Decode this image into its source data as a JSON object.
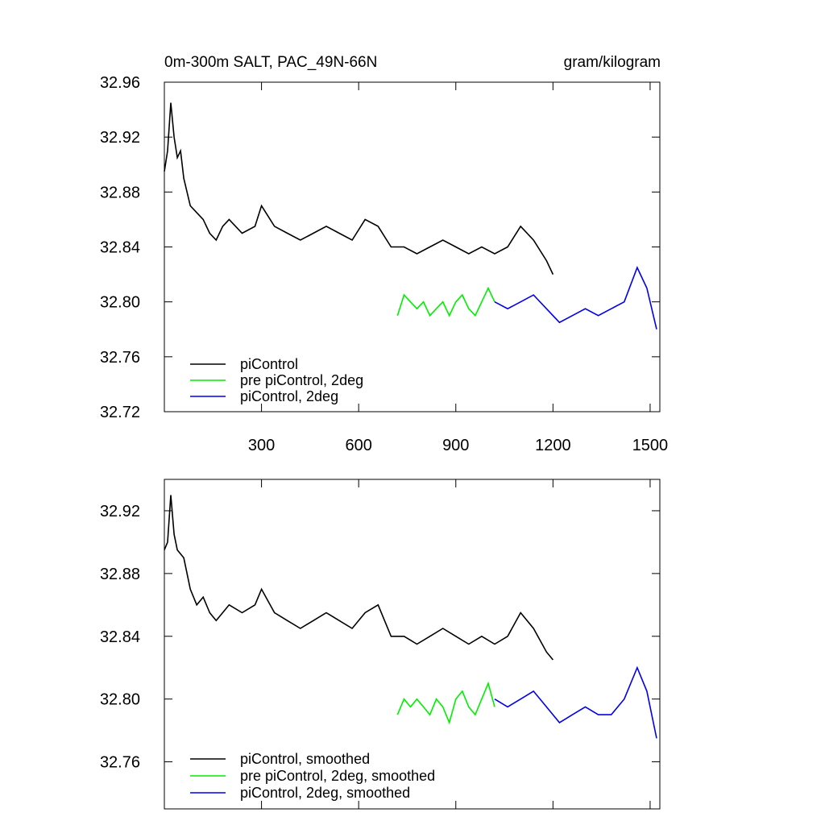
{
  "chart_data": [
    {
      "type": "line",
      "title": "0m-300m SALT, PAC_49N-66N",
      "units": "gram/kilogram",
      "xlim": [
        0,
        1530
      ],
      "ylim": [
        32.72,
        32.96
      ],
      "xticks": [
        300,
        600,
        900,
        1200,
        1500
      ],
      "xtick_labels": [
        "300",
        "600",
        "900",
        "1200",
        "1500"
      ],
      "yticks": [
        32.72,
        32.76,
        32.8,
        32.84,
        32.88,
        32.92,
        32.96
      ],
      "ytick_labels": [
        "32.72",
        "32.76",
        "32.80",
        "32.84",
        "32.88",
        "32.92",
        "32.96"
      ],
      "legend_position": "bottom-left",
      "series": [
        {
          "name": "piControl",
          "color": "#000000",
          "x": [
            0,
            10,
            20,
            30,
            40,
            50,
            60,
            80,
            100,
            120,
            140,
            160,
            180,
            200,
            240,
            280,
            300,
            340,
            380,
            420,
            460,
            500,
            540,
            580,
            620,
            660,
            700,
            740,
            780,
            820,
            860,
            900,
            940,
            980,
            1020,
            1060,
            1100,
            1140,
            1180,
            1200
          ],
          "y": [
            32.895,
            32.91,
            32.945,
            32.92,
            32.905,
            32.91,
            32.89,
            32.87,
            32.865,
            32.86,
            32.85,
            32.845,
            32.855,
            32.86,
            32.85,
            32.855,
            32.87,
            32.855,
            32.85,
            32.845,
            32.85,
            32.855,
            32.85,
            32.845,
            32.86,
            32.855,
            32.84,
            32.84,
            32.835,
            32.84,
            32.845,
            32.84,
            32.835,
            32.84,
            32.835,
            32.84,
            32.855,
            32.845,
            32.83,
            32.82
          ]
        },
        {
          "name": "pre piControl, 2deg",
          "color": "#00ee00",
          "x": [
            720,
            740,
            760,
            780,
            800,
            820,
            840,
            860,
            880,
            900,
            920,
            940,
            960,
            980,
            1000,
            1020
          ],
          "y": [
            32.79,
            32.805,
            32.8,
            32.795,
            32.8,
            32.79,
            32.795,
            32.8,
            32.79,
            32.8,
            32.805,
            32.795,
            32.79,
            32.8,
            32.81,
            32.8
          ]
        },
        {
          "name": "piControl, 2deg",
          "color": "#0000ee",
          "x": [
            1020,
            1060,
            1100,
            1140,
            1180,
            1220,
            1260,
            1300,
            1340,
            1380,
            1420,
            1460,
            1490,
            1520
          ],
          "y": [
            32.8,
            32.795,
            32.8,
            32.805,
            32.795,
            32.785,
            32.79,
            32.795,
            32.79,
            32.795,
            32.8,
            32.825,
            32.81,
            32.78
          ]
        }
      ]
    },
    {
      "type": "line",
      "title": "",
      "xlim": [
        0,
        1530
      ],
      "ylim": [
        32.73,
        32.94
      ],
      "yticks": [
        32.76,
        32.8,
        32.84,
        32.88,
        32.92
      ],
      "ytick_labels": [
        "32.76",
        "32.80",
        "32.84",
        "32.88",
        "32.92"
      ],
      "legend_position": "bottom-left",
      "series": [
        {
          "name": "piControl, smoothed",
          "color": "#000000",
          "x": [
            0,
            10,
            20,
            30,
            40,
            60,
            80,
            100,
            120,
            140,
            160,
            200,
            240,
            280,
            300,
            340,
            380,
            420,
            460,
            500,
            540,
            580,
            620,
            660,
            700,
            740,
            780,
            820,
            860,
            900,
            940,
            980,
            1020,
            1060,
            1100,
            1140,
            1180,
            1200
          ],
          "y": [
            32.895,
            32.9,
            32.93,
            32.905,
            32.895,
            32.89,
            32.87,
            32.86,
            32.865,
            32.855,
            32.85,
            32.86,
            32.855,
            32.86,
            32.87,
            32.855,
            32.85,
            32.845,
            32.85,
            32.855,
            32.85,
            32.845,
            32.855,
            32.86,
            32.84,
            32.84,
            32.835,
            32.84,
            32.845,
            32.84,
            32.835,
            32.84,
            32.835,
            32.84,
            32.855,
            32.845,
            32.83,
            32.825
          ]
        },
        {
          "name": "pre piControl, 2deg, smoothed",
          "color": "#00ee00",
          "x": [
            720,
            740,
            760,
            780,
            800,
            820,
            840,
            860,
            880,
            900,
            920,
            940,
            960,
            980,
            1000,
            1020
          ],
          "y": [
            32.79,
            32.8,
            32.795,
            32.8,
            32.795,
            32.79,
            32.8,
            32.795,
            32.785,
            32.8,
            32.805,
            32.795,
            32.79,
            32.8,
            32.81,
            32.795
          ]
        },
        {
          "name": "piControl, 2deg, smoothed",
          "color": "#0000ee",
          "x": [
            1020,
            1060,
            1100,
            1140,
            1180,
            1220,
            1260,
            1300,
            1340,
            1380,
            1420,
            1460,
            1490,
            1520
          ],
          "y": [
            32.8,
            32.795,
            32.8,
            32.805,
            32.795,
            32.785,
            32.79,
            32.795,
            32.79,
            32.79,
            32.8,
            32.82,
            32.805,
            32.775
          ]
        }
      ]
    }
  ]
}
